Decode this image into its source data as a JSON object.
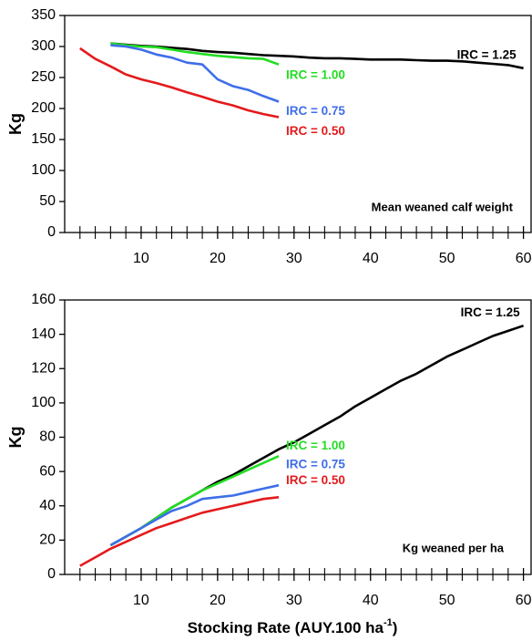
{
  "chart_data": [
    {
      "type": "line",
      "y_label": "Kg",
      "annotation": "Mean weaned calf weight",
      "x": [
        2,
        4,
        6,
        8,
        10,
        12,
        14,
        16,
        18,
        20,
        22,
        24,
        26,
        28,
        30,
        32,
        34,
        36,
        38,
        40,
        42,
        44,
        46,
        48,
        50,
        52,
        54,
        56,
        58,
        60
      ],
      "xlim": [
        0,
        61
      ],
      "xticks": [
        10,
        20,
        30,
        40,
        50,
        60
      ],
      "xminorticks": [
        2,
        4,
        6,
        8,
        12,
        14,
        16,
        18,
        22,
        24,
        26,
        28,
        32,
        34,
        36,
        38,
        42,
        44,
        46,
        48,
        52,
        54,
        56,
        58
      ],
      "ylim": [
        0,
        350
      ],
      "yticks": [
        0,
        50,
        100,
        150,
        200,
        250,
        300,
        350
      ],
      "series": [
        {
          "name": "IRC = 1.25",
          "color": "#000000",
          "values": [
            null,
            null,
            305,
            303,
            301,
            300,
            298,
            296,
            293,
            291,
            290,
            288,
            286,
            285,
            284,
            282,
            281,
            281,
            280,
            279,
            279,
            279,
            278,
            277,
            277,
            276,
            274,
            272,
            270,
            265
          ]
        },
        {
          "name": "IRC = 1.00",
          "color": "#22dd22",
          "values": [
            null,
            null,
            305,
            302,
            300,
            299,
            295,
            291,
            288,
            285,
            283,
            281,
            280,
            271,
            null,
            null,
            null,
            null,
            null,
            null,
            null,
            null,
            null,
            null,
            null,
            null,
            null,
            null,
            null,
            null
          ]
        },
        {
          "name": "IRC = 0.75",
          "color": "#3f6ee8",
          "values": [
            null,
            null,
            302,
            300,
            295,
            287,
            282,
            274,
            271,
            247,
            236,
            230,
            220,
            211,
            null,
            null,
            null,
            null,
            null,
            null,
            null,
            null,
            null,
            null,
            null,
            null,
            null,
            null,
            null,
            null
          ]
        },
        {
          "name": "IRC = 0.50",
          "color": "#e41a1c",
          "values": [
            297,
            280,
            268,
            255,
            247,
            241,
            234,
            226,
            219,
            211,
            205,
            197,
            191,
            186,
            null,
            null,
            null,
            null,
            null,
            null,
            null,
            null,
            null,
            null,
            null,
            null,
            null,
            null,
            null,
            null
          ]
        }
      ]
    },
    {
      "type": "line",
      "y_label": "Kg",
      "annotation": "Kg weaned per ha",
      "x_label": "Stocking Rate (AUY.100 ha",
      "x_label_sup": "-1",
      "x_label_end": ")",
      "x": [
        2,
        4,
        6,
        8,
        10,
        12,
        14,
        16,
        18,
        20,
        22,
        24,
        26,
        28,
        30,
        32,
        34,
        36,
        38,
        40,
        42,
        44,
        46,
        48,
        50,
        52,
        54,
        56,
        58,
        60
      ],
      "xlim": [
        0,
        61
      ],
      "xticks": [
        10,
        20,
        30,
        40,
        50,
        60
      ],
      "xminorticks": [
        2,
        4,
        6,
        8,
        12,
        14,
        16,
        18,
        22,
        24,
        26,
        28,
        32,
        34,
        36,
        38,
        42,
        44,
        46,
        48,
        52,
        54,
        56,
        58
      ],
      "ylim": [
        0,
        160
      ],
      "yticks": [
        0,
        20,
        40,
        60,
        80,
        100,
        120,
        140,
        160
      ],
      "series": [
        {
          "name": "IRC = 1.25",
          "color": "#000000",
          "values": [
            null,
            null,
            17,
            22,
            27,
            33,
            39,
            44,
            49,
            54,
            58,
            63,
            68,
            73,
            77,
            82,
            87,
            92,
            98,
            103,
            108,
            113,
            117,
            122,
            127,
            131,
            135,
            139,
            142,
            145
          ]
        },
        {
          "name": "IRC = 1.00",
          "color": "#22dd22",
          "values": [
            null,
            null,
            17,
            22,
            27,
            33,
            39,
            44,
            49,
            53,
            57,
            61,
            65,
            69,
            null,
            null,
            null,
            null,
            null,
            null,
            null,
            null,
            null,
            null,
            null,
            null,
            null,
            null,
            null,
            null
          ]
        },
        {
          "name": "IRC = 0.75",
          "color": "#3f6ee8",
          "values": [
            null,
            null,
            17,
            22,
            27,
            32,
            37,
            40,
            44,
            45,
            46,
            48,
            50,
            52,
            null,
            null,
            null,
            null,
            null,
            null,
            null,
            null,
            null,
            null,
            null,
            null,
            null,
            null,
            null,
            null
          ]
        },
        {
          "name": "IRC = 0.50",
          "color": "#e41a1c",
          "values": [
            5,
            10,
            15,
            19,
            23,
            27,
            30,
            33,
            36,
            38,
            40,
            42,
            44,
            45,
            null,
            null,
            null,
            null,
            null,
            null,
            null,
            null,
            null,
            null,
            null,
            null,
            null,
            null,
            null,
            null
          ]
        }
      ]
    }
  ]
}
